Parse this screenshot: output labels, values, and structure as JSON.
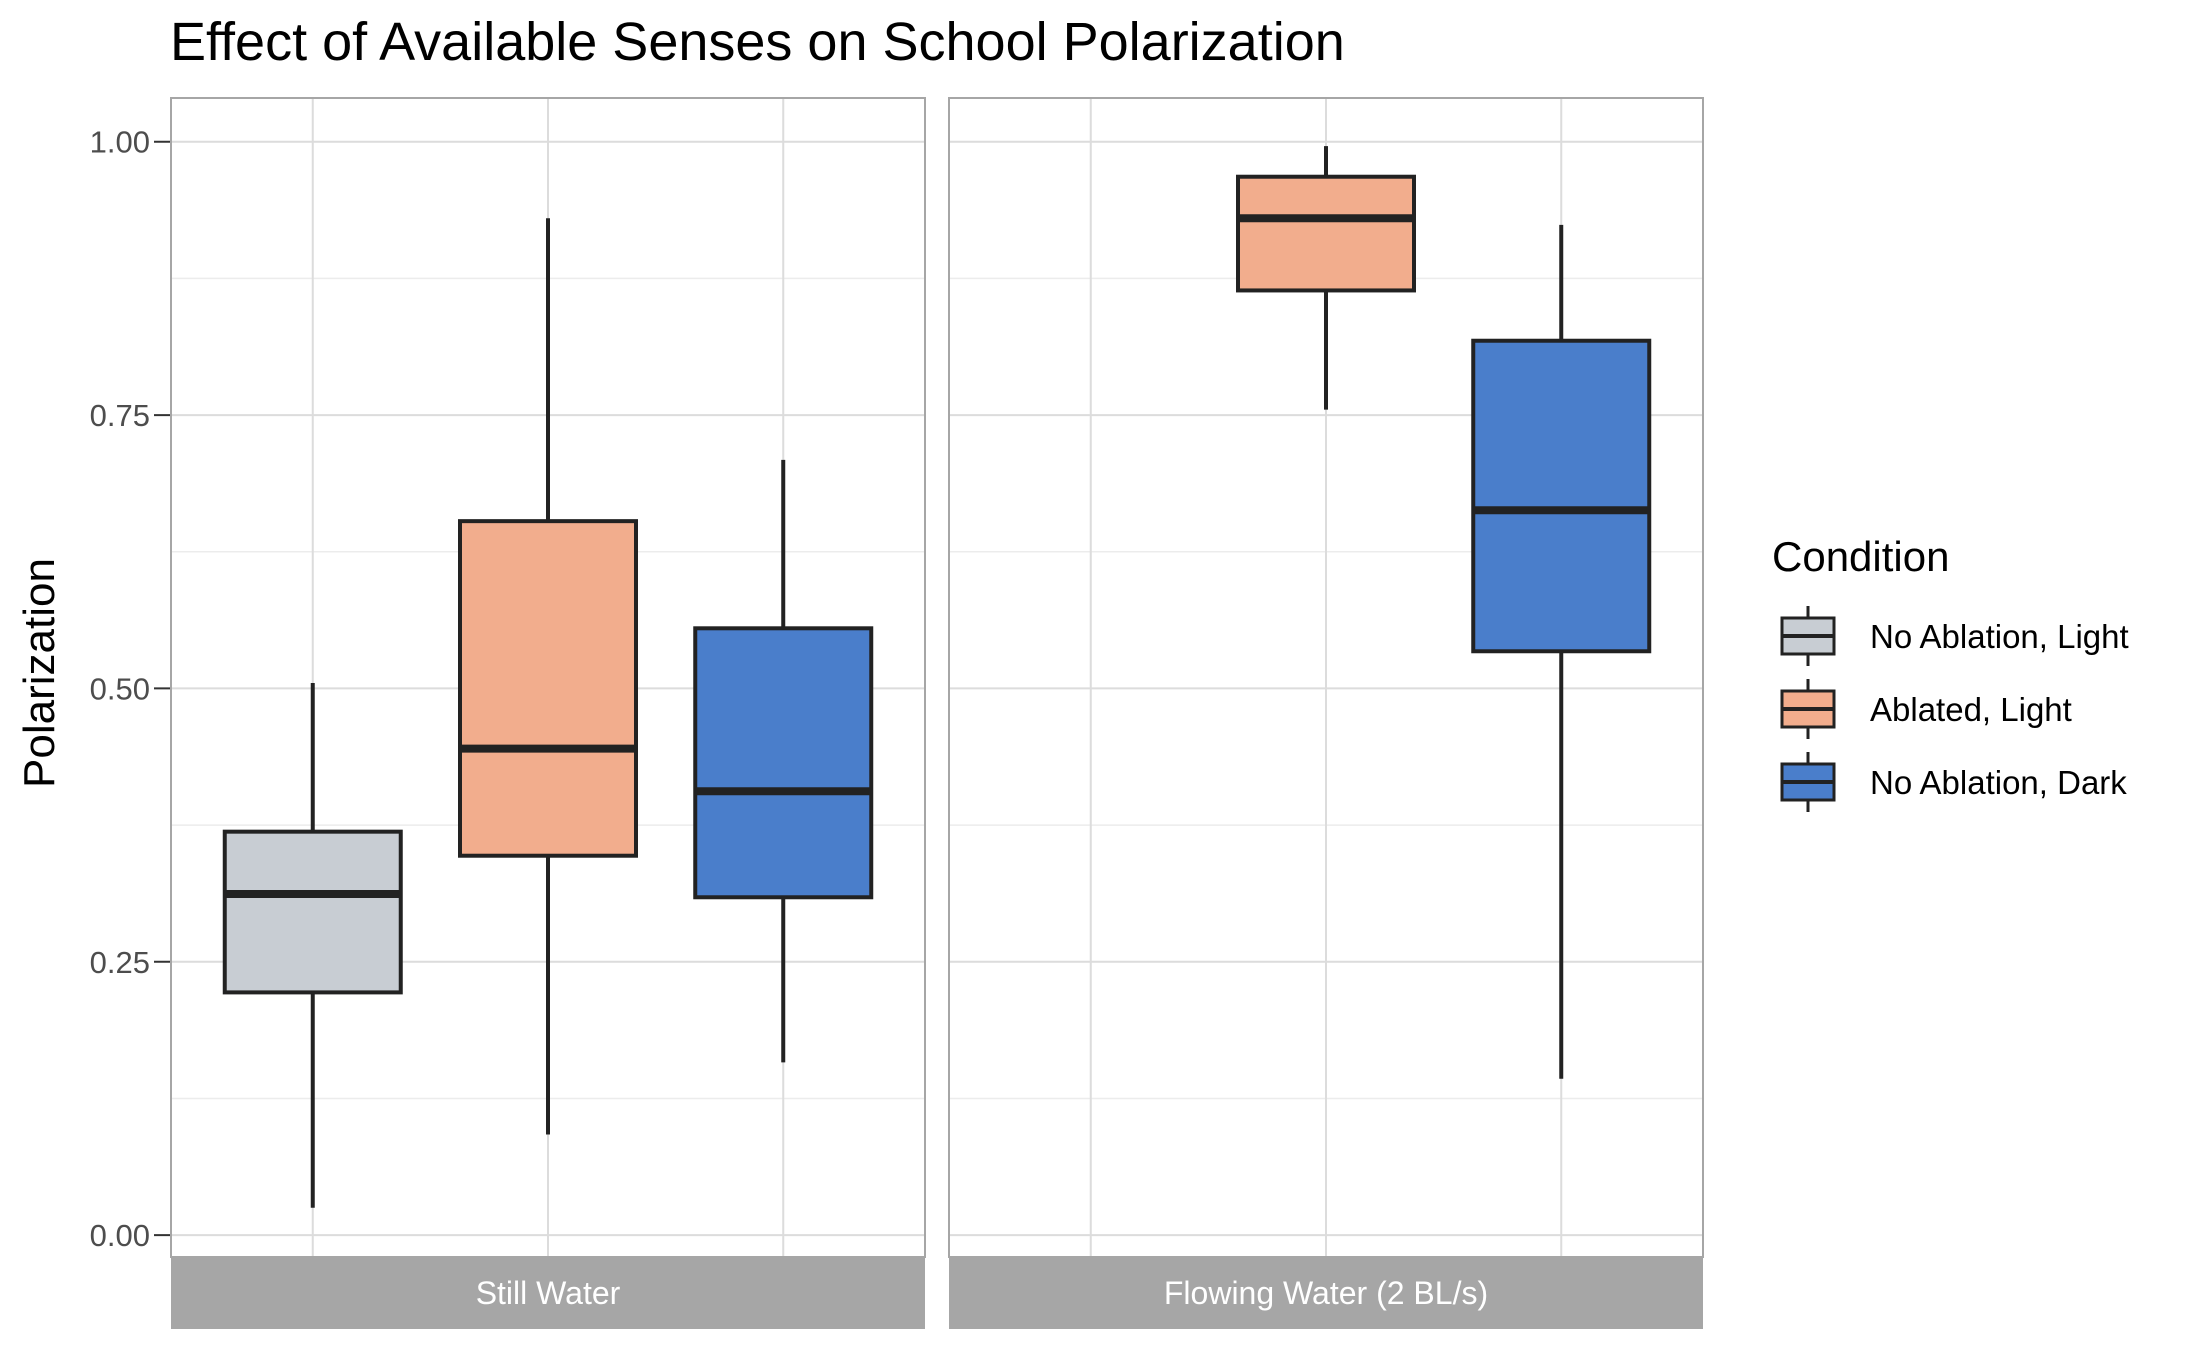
{
  "chart_data": {
    "type": "boxplot",
    "title": "Effect of Available Senses on School Polarization",
    "ylabel": "Polarization",
    "ylim": [
      -0.02,
      1.04
    ],
    "yticks": [
      0.0,
      0.25,
      0.5,
      0.75,
      1.0
    ],
    "ytick_labels": [
      "0.00",
      "0.25",
      "0.50",
      "0.75",
      "1.00"
    ],
    "grid": true,
    "legend": {
      "title": "Condition",
      "placement": "right",
      "entries": [
        {
          "name": "No Ablation, Light",
          "color": "#c8cdd3"
        },
        {
          "name": "Ablated, Light",
          "color": "#f2ad8d"
        },
        {
          "name": "No Ablation, Dark",
          "color": "#4a7ecb"
        }
      ]
    },
    "panels": [
      {
        "label": "Still Water",
        "boxes": [
          {
            "condition": "No Ablation, Light",
            "slot": 0,
            "min": 0.025,
            "q1": 0.222,
            "median": 0.312,
            "q3": 0.369,
            "max": 0.505
          },
          {
            "condition": "Ablated, Light",
            "slot": 1,
            "min": 0.092,
            "q1": 0.347,
            "median": 0.445,
            "q3": 0.653,
            "max": 0.93
          },
          {
            "condition": "No Ablation, Dark",
            "slot": 2,
            "min": 0.158,
            "q1": 0.309,
            "median": 0.406,
            "q3": 0.555,
            "max": 0.709
          }
        ]
      },
      {
        "label": "Flowing Water (2 BL/s)",
        "boxes": [
          {
            "condition": "Ablated, Light",
            "slot": 1,
            "min": 0.755,
            "q1": 0.864,
            "median": 0.93,
            "q3": 0.968,
            "max": 0.996
          },
          {
            "condition": "No Ablation, Dark",
            "slot": 2,
            "min": 0.143,
            "q1": 0.534,
            "median": 0.663,
            "q3": 0.818,
            "max": 0.924
          }
        ]
      }
    ]
  }
}
